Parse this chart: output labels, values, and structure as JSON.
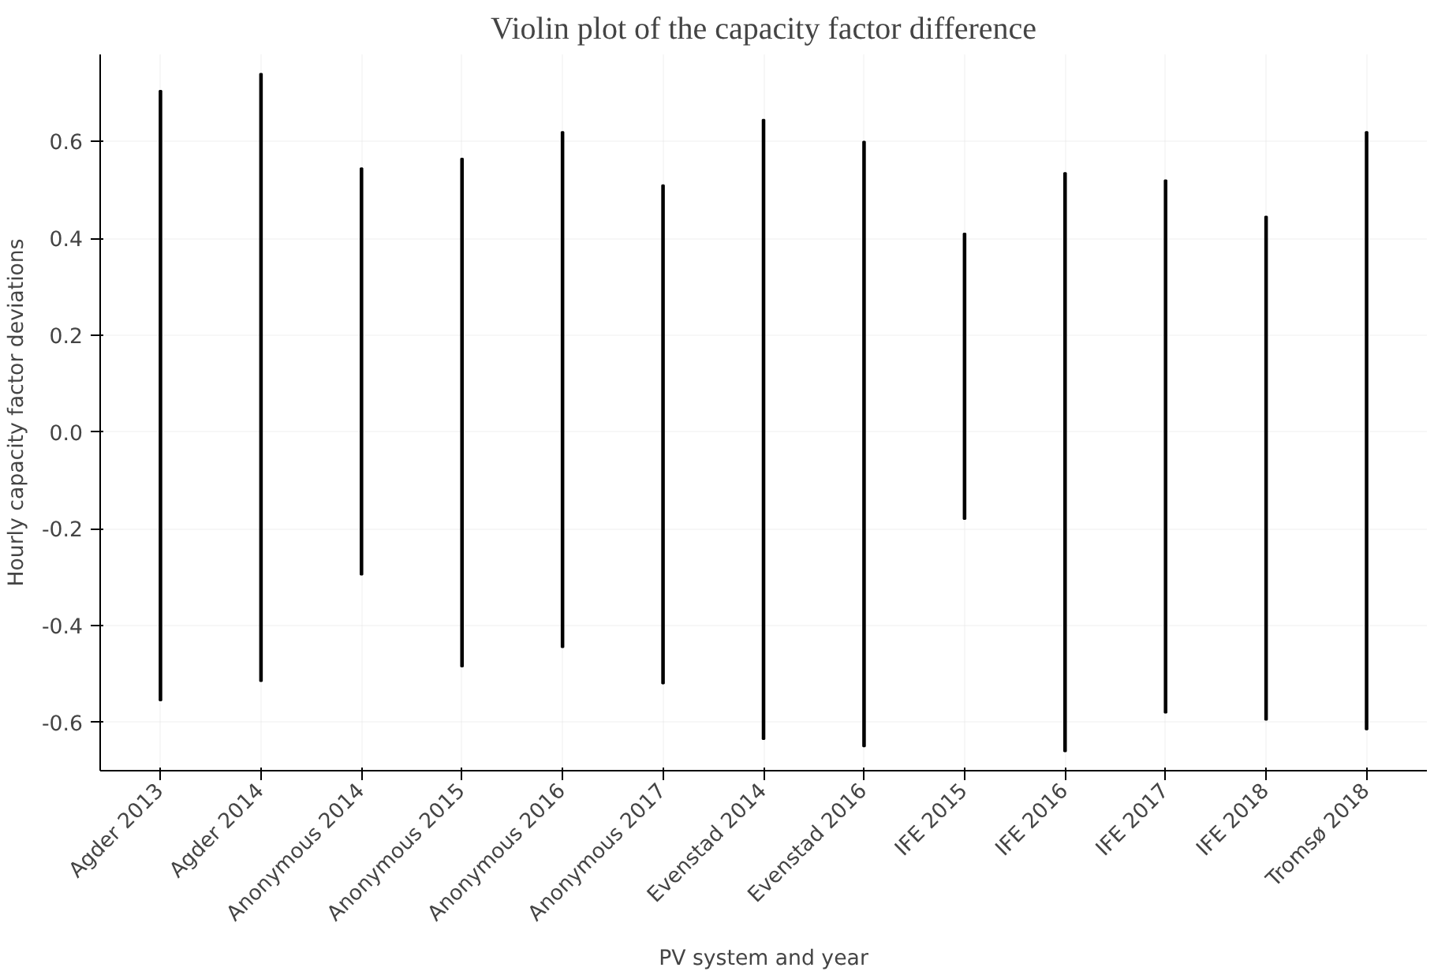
{
  "chart_data": {
    "type": "bar",
    "title": "Violin plot of the capacity factor difference",
    "xlabel": "PV system and year",
    "ylabel": "Hourly capacity factor deviations",
    "categories": [
      "Agder 2013",
      "Agder 2014",
      "Anonymous 2014",
      "Anonymous 2015",
      "Anonymous 2016",
      "Anonymous 2017",
      "Evenstad 2014",
      "Evenstad 2016",
      "IFE 2015",
      "IFE 2016",
      "IFE 2017",
      "IFE 2018",
      "Tromsø 2018"
    ],
    "base": [
      -0.555,
      -0.515,
      -0.295,
      -0.485,
      -0.445,
      -0.52,
      -0.635,
      -0.65,
      -0.18,
      -0.66,
      -0.58,
      -0.595,
      -0.615
    ],
    "values": [
      1.26,
      1.255,
      0.84,
      1.05,
      1.065,
      1.03,
      1.28,
      1.25,
      0.59,
      1.195,
      1.1,
      1.04,
      1.235
    ],
    "color": "#000000",
    "ylim": [
      -0.7,
      0.78
    ],
    "yticks": [
      {
        "value": -0.6,
        "label": "-0.6"
      },
      {
        "value": -0.4,
        "label": "-0.4"
      },
      {
        "value": -0.2,
        "label": "-0.2"
      },
      {
        "value": 0,
        "label": "0.0"
      },
      {
        "value": 0.2,
        "label": "0.2"
      },
      {
        "value": 0.4,
        "label": "0.4"
      },
      {
        "value": 0.6,
        "label": "0.6"
      }
    ],
    "grid": true
  }
}
